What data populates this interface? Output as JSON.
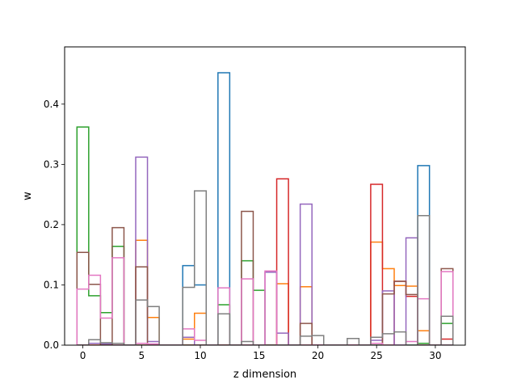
{
  "chart_data": {
    "type": "step",
    "title": "",
    "xlabel": "z dimension",
    "ylabel": "w",
    "xlim": [
      -1.55,
      32.55
    ],
    "ylim": [
      0,
      0.495
    ],
    "x_ticks": [
      0,
      5,
      10,
      15,
      20,
      25,
      30
    ],
    "x_tick_labels": [
      "0",
      "5",
      "10",
      "15",
      "20",
      "25",
      "30"
    ],
    "y_ticks": [
      0.0,
      0.1,
      0.2,
      0.3,
      0.4
    ],
    "y_tick_labels": [
      "0.0",
      "0.1",
      "0.2",
      "0.3",
      "0.4"
    ],
    "grid": false,
    "legend": "none",
    "bin_edges": [
      -0.5,
      0.5,
      1.5,
      2.5,
      3.5,
      4.5,
      5.5,
      6.5,
      7.5,
      8.5,
      9.5,
      10.5,
      11.5,
      12.5,
      13.5,
      14.5,
      15.5,
      16.5,
      17.5,
      18.5,
      19.5,
      20.5,
      21.5,
      22.5,
      23.5,
      24.5,
      25.5,
      26.5,
      27.5,
      28.5,
      29.5,
      30.5,
      31.5
    ],
    "series": [
      {
        "color": "#1f77b4",
        "values": [
          0.0,
          0.003,
          0.002,
          0.0,
          0.0,
          0.0,
          0.0,
          0.0,
          0.0,
          0.132,
          0.1,
          0.0,
          0.452,
          0.0,
          0.0,
          0.0,
          0.0,
          0.0,
          0.0,
          0.0,
          0.0,
          0.0,
          0.0,
          0.0,
          0.0,
          0.0,
          0.0,
          0.0,
          0.0,
          0.298,
          0.0,
          0.0
        ]
      },
      {
        "color": "#ff7f0e",
        "values": [
          0.0,
          0.0,
          0.0,
          0.0,
          0.0,
          0.174,
          0.046,
          0.0,
          0.0,
          0.01,
          0.053,
          0.0,
          0.0,
          0.0,
          0.0,
          0.0,
          0.0,
          0.102,
          0.0,
          0.097,
          0.0,
          0.0,
          0.0,
          0.0,
          0.0,
          0.171,
          0.127,
          0.099,
          0.098,
          0.024,
          0.0,
          0.0
        ]
      },
      {
        "color": "#2ca02c",
        "values": [
          0.362,
          0.082,
          0.054,
          0.164,
          0.0,
          0.0,
          0.0,
          0.0,
          0.0,
          0.0,
          0.0,
          0.0,
          0.067,
          0.0,
          0.14,
          0.091,
          0.0,
          0.0,
          0.0,
          0.0,
          0.0,
          0.0,
          0.0,
          0.0,
          0.0,
          0.0,
          0.0,
          0.0,
          0.0,
          0.003,
          0.0,
          0.036
        ]
      },
      {
        "color": "#d62728",
        "values": [
          0.0,
          0.0,
          0.0,
          0.0,
          0.0,
          0.0,
          0.0,
          0.0,
          0.0,
          0.0,
          0.0,
          0.0,
          0.0,
          0.0,
          0.0,
          0.0,
          0.0,
          0.276,
          0.0,
          0.0,
          0.0,
          0.0,
          0.0,
          0.0,
          0.0,
          0.267,
          0.0,
          0.106,
          0.081,
          0.0,
          0.0,
          0.01
        ]
      },
      {
        "color": "#9467bd",
        "values": [
          0.0,
          0.003,
          0.002,
          0.0,
          0.0,
          0.312,
          0.006,
          0.0,
          0.0,
          0.013,
          0.0,
          0.0,
          0.0,
          0.0,
          0.0,
          0.0,
          0.121,
          0.02,
          0.0,
          0.234,
          0.0,
          0.0,
          0.0,
          0.0,
          0.0,
          0.008,
          0.09,
          0.0,
          0.178,
          0.0,
          0.0,
          0.0
        ]
      },
      {
        "color": "#8c564b",
        "values": [
          0.154,
          0.101,
          0.0,
          0.195,
          0.0,
          0.13,
          0.0,
          0.0,
          0.0,
          0.0,
          0.0,
          0.0,
          0.0,
          0.0,
          0.222,
          0.0,
          0.0,
          0.0,
          0.0,
          0.036,
          0.0,
          0.0,
          0.0,
          0.0,
          0.0,
          0.0,
          0.085,
          0.106,
          0.084,
          0.0,
          0.0,
          0.127
        ]
      },
      {
        "color": "#e377c2",
        "values": [
          0.093,
          0.116,
          0.045,
          0.145,
          0.0,
          0.003,
          0.002,
          0.0,
          0.0,
          0.027,
          0.008,
          0.0,
          0.095,
          0.0,
          0.11,
          0.0,
          0.123,
          0.0,
          0.0,
          0.0,
          0.0,
          0.0,
          0.0,
          0.0,
          0.0,
          0.003,
          0.0,
          0.0,
          0.006,
          0.077,
          0.0,
          0.122
        ]
      },
      {
        "color": "#7f7f7f",
        "values": [
          0.0,
          0.009,
          0.004,
          0.003,
          0.0,
          0.075,
          0.064,
          0.0,
          0.0,
          0.096,
          0.256,
          0.0,
          0.052,
          0.0,
          0.006,
          0.0,
          0.0,
          0.0,
          0.0,
          0.015,
          0.016,
          0.0,
          0.0,
          0.011,
          0.0,
          0.013,
          0.019,
          0.022,
          0.0,
          0.215,
          0.0,
          0.048
        ]
      }
    ]
  }
}
